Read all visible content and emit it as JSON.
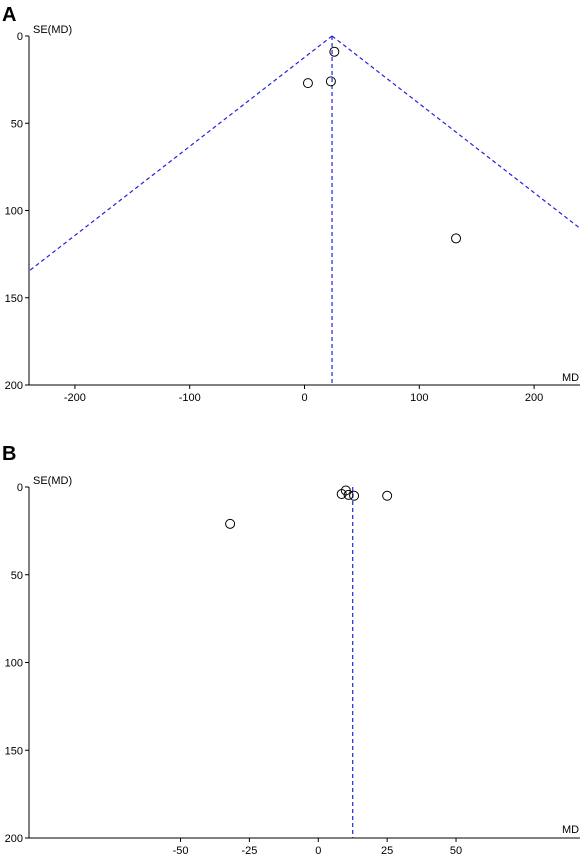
{
  "chart_data": [
    {
      "type": "scatter",
      "panel_label": "A",
      "xlabel": "MD",
      "ylabel": "SE(MD)",
      "xlim": [
        -240,
        240
      ],
      "ylim": [
        0,
        200
      ],
      "y_inverted": true,
      "x_ticks": [
        "-200",
        "-100",
        "0",
        "100",
        "200"
      ],
      "x_tick_values": [
        -200,
        -100,
        0,
        100,
        200
      ],
      "y_ticks": [
        "0",
        "50",
        "100",
        "150",
        "200"
      ],
      "y_tick_values": [
        0,
        50,
        100,
        150,
        200
      ],
      "pooled_md": 24,
      "funnel_multiplier": 1.96,
      "show_funnel": true,
      "points": [
        {
          "x": 26,
          "y": 9
        },
        {
          "x": 3,
          "y": 27
        },
        {
          "x": 23,
          "y": 26
        },
        {
          "x": 132,
          "y": 116
        }
      ]
    },
    {
      "type": "scatter",
      "panel_label": "B",
      "xlabel": "MD",
      "ylabel": "SE(MD)",
      "xlim": [
        -105,
        95
      ],
      "ylim": [
        0,
        200
      ],
      "y_inverted": true,
      "x_ticks": [
        "-50",
        "-25",
        "0",
        "25",
        "50"
      ],
      "x_tick_values": [
        -50,
        -25,
        0,
        25,
        50
      ],
      "y_ticks": [
        "0",
        "50",
        "100",
        "150",
        "200"
      ],
      "y_tick_values": [
        0,
        50,
        100,
        150,
        200
      ],
      "pooled_md": 12.5,
      "show_funnel": false,
      "points": [
        {
          "x": -32,
          "y": 21
        },
        {
          "x": 8.5,
          "y": 4
        },
        {
          "x": 10,
          "y": 2
        },
        {
          "x": 11,
          "y": 4.5
        },
        {
          "x": 13,
          "y": 5
        },
        {
          "x": 25,
          "y": 5
        }
      ]
    }
  ]
}
